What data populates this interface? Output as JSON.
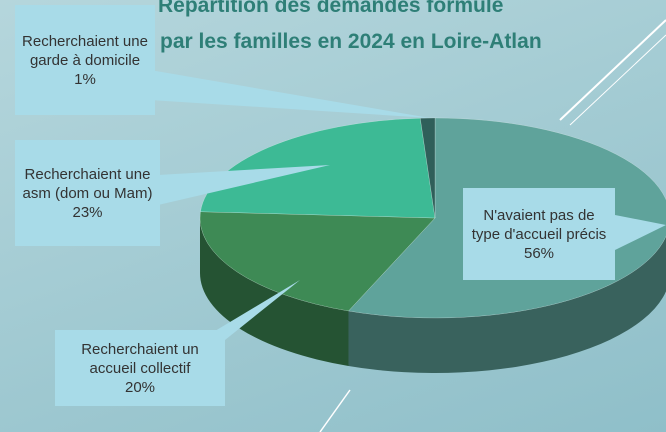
{
  "chart_data": {
    "type": "pie3d",
    "title_lines": [
      "Répartition des demandes formulé",
      "par les familles en 2024 en Loire-Atlan"
    ],
    "categories": [
      "N'avaient pas de type d'accueil précis",
      "Recherchaient un accueil collectif",
      "Recherchaient une asm (dom ou Mam)",
      "Recherchaient une garde à domicile"
    ],
    "values": [
      56,
      20,
      23,
      1
    ],
    "value_labels": [
      "56%",
      "20%",
      "23%",
      "1%"
    ],
    "colors": [
      "#5fa39b",
      "#3e8a55",
      "#3dba95",
      "#2f5f5a"
    ]
  }
}
